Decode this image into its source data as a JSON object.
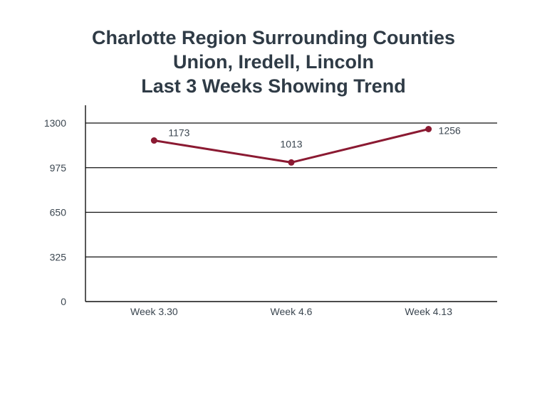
{
  "chart_data": {
    "type": "line",
    "title_lines": [
      "Charlotte Region Surrounding Counties",
      "Union, Iredell, Lincoln",
      "Last 3 Weeks Showing Trend"
    ],
    "categories": [
      "Week 3.30",
      "Week 4.6",
      "Week 4.13"
    ],
    "series": [
      {
        "values": [
          1173,
          1013,
          1256
        ],
        "color": "#8b1a32"
      }
    ],
    "ylim": [
      0,
      1300
    ],
    "yticks": [
      0,
      325,
      650,
      975,
      1300
    ],
    "grid": true,
    "xlabel": "",
    "ylabel": ""
  }
}
